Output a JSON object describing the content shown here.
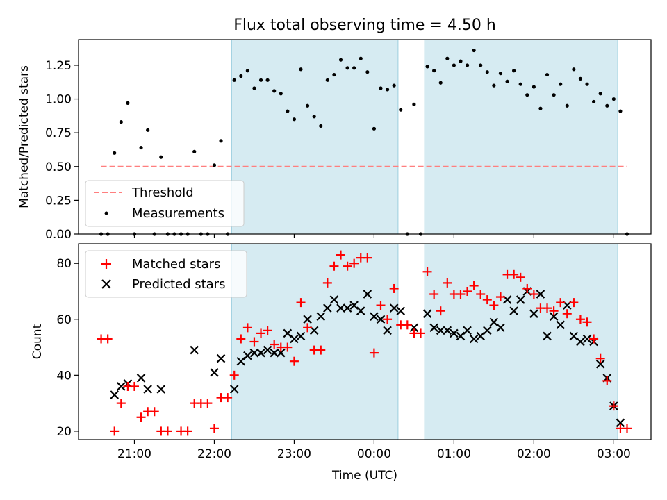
{
  "figure_title": "Flux total observing time = 4.50 h",
  "chart_data": [
    {
      "type": "scatter",
      "panel": "top",
      "ylabel": "Matched/Predicted stars",
      "xlim": [
        "20:18",
        "03:28"
      ],
      "ylim": [
        0,
        1.44
      ],
      "y_ticks": [
        "0.00",
        "0.25",
        "0.50",
        "0.75",
        "1.00",
        "1.25"
      ],
      "y_tick_values": [
        0,
        0.25,
        0.5,
        0.75,
        1.0,
        1.25
      ],
      "threshold": {
        "label": "Threshold",
        "value": 0.5,
        "x_range": [
          "20:35",
          "03:10"
        ],
        "color": "#ff7f7f"
      },
      "legend_position": "lower-left",
      "shaded_intervals": [
        {
          "start": "22:13",
          "end": "00:18"
        },
        {
          "start": "00:38",
          "end": "03:03"
        }
      ],
      "series": [
        {
          "name": "Measurements",
          "marker": "dot",
          "color": "#000000",
          "points": [
            [
              "20:35",
              0.0
            ],
            [
              "20:40",
              0.0
            ],
            [
              "20:45",
              0.6
            ],
            [
              "20:50",
              0.83
            ],
            [
              "20:55",
              0.97
            ],
            [
              "21:00",
              0.0
            ],
            [
              "21:05",
              0.64
            ],
            [
              "21:10",
              0.77
            ],
            [
              "21:15",
              0.0
            ],
            [
              "21:20",
              0.57
            ],
            [
              "21:25",
              0.0
            ],
            [
              "21:30",
              0.0
            ],
            [
              "21:35",
              0.0
            ],
            [
              "21:40",
              0.0
            ],
            [
              "21:45",
              0.61
            ],
            [
              "21:50",
              0.0
            ],
            [
              "21:55",
              0.0
            ],
            [
              "22:00",
              0.51
            ],
            [
              "22:05",
              0.69
            ],
            [
              "22:10",
              0.0
            ],
            [
              "22:15",
              1.14
            ],
            [
              "22:20",
              1.17
            ],
            [
              "22:25",
              1.21
            ],
            [
              "22:30",
              1.08
            ],
            [
              "22:35",
              1.14
            ],
            [
              "22:40",
              1.14
            ],
            [
              "22:45",
              1.06
            ],
            [
              "22:50",
              1.04
            ],
            [
              "22:55",
              0.91
            ],
            [
              "23:00",
              0.85
            ],
            [
              "23:05",
              1.22
            ],
            [
              "23:10",
              0.95
            ],
            [
              "23:15",
              0.87
            ],
            [
              "23:20",
              0.8
            ],
            [
              "23:25",
              1.14
            ],
            [
              "23:30",
              1.18
            ],
            [
              "23:35",
              1.29
            ],
            [
              "23:40",
              1.23
            ],
            [
              "23:45",
              1.23
            ],
            [
              "23:50",
              1.3
            ],
            [
              "23:55",
              1.2
            ],
            [
              "00:00",
              0.78
            ],
            [
              "00:05",
              1.08
            ],
            [
              "00:10",
              1.07
            ],
            [
              "00:15",
              1.1
            ],
            [
              "00:20",
              0.92
            ],
            [
              "00:25",
              0.0
            ],
            [
              "00:30",
              0.96
            ],
            [
              "00:35",
              0.0
            ],
            [
              "00:40",
              1.24
            ],
            [
              "00:45",
              1.21
            ],
            [
              "00:50",
              1.12
            ],
            [
              "00:55",
              1.3
            ],
            [
              "01:00",
              1.25
            ],
            [
              "01:05",
              1.28
            ],
            [
              "01:10",
              1.25
            ],
            [
              "01:15",
              1.36
            ],
            [
              "01:20",
              1.25
            ],
            [
              "01:25",
              1.2
            ],
            [
              "01:30",
              1.1
            ],
            [
              "01:35",
              1.19
            ],
            [
              "01:40",
              1.13
            ],
            [
              "01:45",
              1.21
            ],
            [
              "01:50",
              1.11
            ],
            [
              "01:55",
              1.03
            ],
            [
              "02:00",
              1.09
            ],
            [
              "02:05",
              0.93
            ],
            [
              "02:10",
              1.18
            ],
            [
              "02:15",
              1.03
            ],
            [
              "02:20",
              1.11
            ],
            [
              "02:25",
              0.95
            ],
            [
              "02:30",
              1.22
            ],
            [
              "02:35",
              1.15
            ],
            [
              "02:40",
              1.11
            ],
            [
              "02:45",
              0.98
            ],
            [
              "02:50",
              1.04
            ],
            [
              "02:55",
              0.95
            ],
            [
              "03:00",
              1.0
            ],
            [
              "03:05",
              0.91
            ],
            [
              "03:10",
              0.0
            ]
          ]
        }
      ],
      "legend": [
        "Threshold",
        "Measurements"
      ]
    },
    {
      "type": "scatter",
      "panel": "bottom",
      "xlabel": "Time (UTC)",
      "ylabel": "Count",
      "xlim": [
        "20:18",
        "03:28"
      ],
      "ylim": [
        17,
        87
      ],
      "x_ticks": [
        "21:00",
        "22:00",
        "23:00",
        "00:00",
        "01:00",
        "02:00",
        "03:00"
      ],
      "y_ticks": [
        "20",
        "40",
        "60",
        "80"
      ],
      "y_tick_values": [
        20,
        40,
        60,
        80
      ],
      "legend_position": "upper-left",
      "shaded_intervals": [
        {
          "start": "22:13",
          "end": "00:18"
        },
        {
          "start": "00:38",
          "end": "03:03"
        }
      ],
      "series": [
        {
          "name": "Matched stars",
          "marker": "plus",
          "color": "#ff0000",
          "points": [
            [
              "20:35",
              53
            ],
            [
              "20:40",
              53
            ],
            [
              "20:45",
              20
            ],
            [
              "20:50",
              30
            ],
            [
              "20:55",
              36
            ],
            [
              "21:00",
              36
            ],
            [
              "21:05",
              25
            ],
            [
              "21:10",
              27
            ],
            [
              "21:15",
              27
            ],
            [
              "21:20",
              20
            ],
            [
              "21:25",
              20
            ],
            [
              "21:35",
              20
            ],
            [
              "21:40",
              20
            ],
            [
              "21:45",
              30
            ],
            [
              "21:50",
              30
            ],
            [
              "21:55",
              30
            ],
            [
              "22:00",
              21
            ],
            [
              "22:05",
              32
            ],
            [
              "22:10",
              32
            ],
            [
              "22:15",
              40
            ],
            [
              "22:20",
              53
            ],
            [
              "22:25",
              57
            ],
            [
              "22:30",
              52
            ],
            [
              "22:35",
              55
            ],
            [
              "22:40",
              56
            ],
            [
              "22:45",
              51
            ],
            [
              "22:50",
              50
            ],
            [
              "22:55",
              50
            ],
            [
              "23:00",
              45
            ],
            [
              "23:05",
              66
            ],
            [
              "23:10",
              57
            ],
            [
              "23:15",
              49
            ],
            [
              "23:20",
              49
            ],
            [
              "23:25",
              73
            ],
            [
              "23:30",
              79
            ],
            [
              "23:35",
              83
            ],
            [
              "23:40",
              79
            ],
            [
              "23:45",
              80
            ],
            [
              "23:50",
              82
            ],
            [
              "23:55",
              82
            ],
            [
              "00:00",
              48
            ],
            [
              "00:05",
              65
            ],
            [
              "00:10",
              60
            ],
            [
              "00:15",
              71
            ],
            [
              "00:20",
              58
            ],
            [
              "00:25",
              58
            ],
            [
              "00:30",
              55
            ],
            [
              "00:35",
              55
            ],
            [
              "00:40",
              77
            ],
            [
              "00:45",
              69
            ],
            [
              "00:50",
              63
            ],
            [
              "00:55",
              73
            ],
            [
              "01:00",
              69
            ],
            [
              "01:05",
              69
            ],
            [
              "01:10",
              70
            ],
            [
              "01:15",
              72
            ],
            [
              "01:20",
              69
            ],
            [
              "01:25",
              67
            ],
            [
              "01:30",
              65
            ],
            [
              "01:35",
              68
            ],
            [
              "01:40",
              76
            ],
            [
              "01:45",
              76
            ],
            [
              "01:50",
              75
            ],
            [
              "01:55",
              71
            ],
            [
              "02:00",
              69
            ],
            [
              "02:05",
              64
            ],
            [
              "02:10",
              64
            ],
            [
              "02:15",
              63
            ],
            [
              "02:20",
              66
            ],
            [
              "02:25",
              62
            ],
            [
              "02:30",
              66
            ],
            [
              "02:35",
              60
            ],
            [
              "02:40",
              59
            ],
            [
              "02:45",
              53
            ],
            [
              "02:50",
              46
            ],
            [
              "02:55",
              38
            ],
            [
              "03:00",
              29
            ],
            [
              "03:05",
              21
            ],
            [
              "03:10",
              21
            ]
          ]
        },
        {
          "name": "Predicted stars",
          "marker": "x",
          "color": "#000000",
          "points": [
            [
              "20:45",
              33
            ],
            [
              "20:50",
              36
            ],
            [
              "20:55",
              37
            ],
            [
              "21:05",
              39
            ],
            [
              "21:10",
              35
            ],
            [
              "21:20",
              35
            ],
            [
              "21:45",
              49
            ],
            [
              "22:00",
              41
            ],
            [
              "22:05",
              46
            ],
            [
              "22:15",
              35
            ],
            [
              "22:20",
              45
            ],
            [
              "22:25",
              47
            ],
            [
              "22:30",
              48
            ],
            [
              "22:35",
              48
            ],
            [
              "22:40",
              49
            ],
            [
              "22:45",
              48
            ],
            [
              "22:50",
              48
            ],
            [
              "22:55",
              55
            ],
            [
              "23:00",
              53
            ],
            [
              "23:05",
              54
            ],
            [
              "23:10",
              60
            ],
            [
              "23:15",
              56
            ],
            [
              "23:20",
              61
            ],
            [
              "23:25",
              64
            ],
            [
              "23:30",
              67
            ],
            [
              "23:35",
              64
            ],
            [
              "23:40",
              64
            ],
            [
              "23:45",
              65
            ],
            [
              "23:50",
              63
            ],
            [
              "23:55",
              69
            ],
            [
              "00:00",
              61
            ],
            [
              "00:05",
              60
            ],
            [
              "00:10",
              56
            ],
            [
              "00:15",
              64
            ],
            [
              "00:20",
              63
            ],
            [
              "00:30",
              57
            ],
            [
              "00:40",
              62
            ],
            [
              "00:45",
              57
            ],
            [
              "00:50",
              56
            ],
            [
              "00:55",
              56
            ],
            [
              "01:00",
              55
            ],
            [
              "01:05",
              54
            ],
            [
              "01:10",
              56
            ],
            [
              "01:15",
              53
            ],
            [
              "01:20",
              54
            ],
            [
              "01:25",
              56
            ],
            [
              "01:30",
              59
            ],
            [
              "01:35",
              57
            ],
            [
              "01:40",
              67
            ],
            [
              "01:45",
              63
            ],
            [
              "01:50",
              67
            ],
            [
              "01:55",
              70
            ],
            [
              "02:00",
              62
            ],
            [
              "02:05",
              69
            ],
            [
              "02:10",
              54
            ],
            [
              "02:15",
              61
            ],
            [
              "02:20",
              58
            ],
            [
              "02:25",
              65
            ],
            [
              "02:30",
              54
            ],
            [
              "02:35",
              52
            ],
            [
              "02:40",
              53
            ],
            [
              "02:45",
              52
            ],
            [
              "02:50",
              44
            ],
            [
              "02:55",
              39
            ],
            [
              "03:00",
              29
            ],
            [
              "03:05",
              23
            ]
          ]
        }
      ],
      "legend": [
        "Matched stars",
        "Predicted stars"
      ]
    }
  ]
}
